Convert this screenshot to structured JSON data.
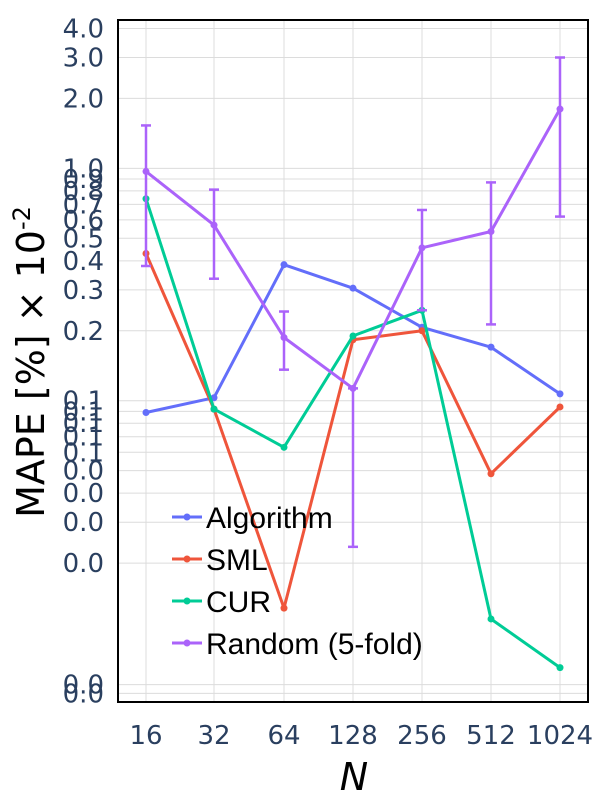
{
  "chart_data": {
    "type": "line",
    "xlabel": "N",
    "ylabel": "MAPE [%] × 10",
    "ylabel_superscript": "-2",
    "x_scale": "log2",
    "y_scale": "log",
    "grid": true,
    "legend_position": "bottom-left (inside plot)",
    "categories": [
      "16",
      "32",
      "64",
      "128",
      "256",
      "512",
      "1024"
    ],
    "x": [
      16,
      32,
      64,
      128,
      256,
      512,
      1024
    ],
    "ylim": [
      0.00505,
      4.35
    ],
    "y_tick_labels": [
      {
        "value": 4.0,
        "label": "4.0"
      },
      {
        "value": 3.0,
        "label": "3.0"
      },
      {
        "value": 2.0,
        "label": "2.0"
      },
      {
        "value": 1.0,
        "label": "1.0"
      },
      {
        "value": 0.9,
        "label": "0.9"
      },
      {
        "value": 0.8,
        "label": "0.8"
      },
      {
        "value": 0.7,
        "label": "0.7"
      },
      {
        "value": 0.6,
        "label": "0.6"
      },
      {
        "value": 0.5,
        "label": "0.5"
      },
      {
        "value": 0.4,
        "label": "0.4"
      },
      {
        "value": 0.3,
        "label": "0.3"
      },
      {
        "value": 0.2,
        "label": "0.2"
      },
      {
        "value": 0.1,
        "label": "0.1"
      },
      {
        "value": 0.09,
        "label": "0.1"
      },
      {
        "value": 0.08,
        "label": "0.1"
      },
      {
        "value": 0.07,
        "label": "0.1"
      },
      {
        "value": 0.06,
        "label": "0.1"
      },
      {
        "value": 0.05,
        "label": "0.0"
      },
      {
        "value": 0.04,
        "label": "0.0"
      },
      {
        "value": 0.03,
        "label": "0.0"
      },
      {
        "value": 0.02,
        "label": "0.0"
      },
      {
        "value": 0.006,
        "label": "0.0"
      },
      {
        "value": 0.0055,
        "label": "0.0"
      }
    ],
    "series": [
      {
        "name": "Algorithm",
        "color": "#636efa",
        "values": [
          0.089,
          0.103,
          0.385,
          0.305,
          0.207,
          0.17,
          0.107
        ]
      },
      {
        "name": "SML",
        "color": "#ef553b",
        "values": [
          0.43,
          0.092,
          0.0128,
          0.183,
          0.2,
          0.0485,
          0.094
        ]
      },
      {
        "name": "CUR",
        "color": "#00cc96",
        "values": [
          0.74,
          0.092,
          0.063,
          0.19,
          0.245,
          0.0115,
          0.0071
        ]
      },
      {
        "name": "Random (5-fold)",
        "color": "#ab63fa",
        "values": [
          0.97,
          0.57,
          0.187,
          0.113,
          0.455,
          0.535,
          1.8
        ],
        "error_low": [
          0.38,
          0.335,
          0.136,
          0.0235,
          0.245,
          0.213,
          0.62
        ],
        "error_high": [
          1.53,
          0.81,
          0.242,
          0.113,
          0.662,
          0.87,
          3.0
        ]
      }
    ]
  }
}
